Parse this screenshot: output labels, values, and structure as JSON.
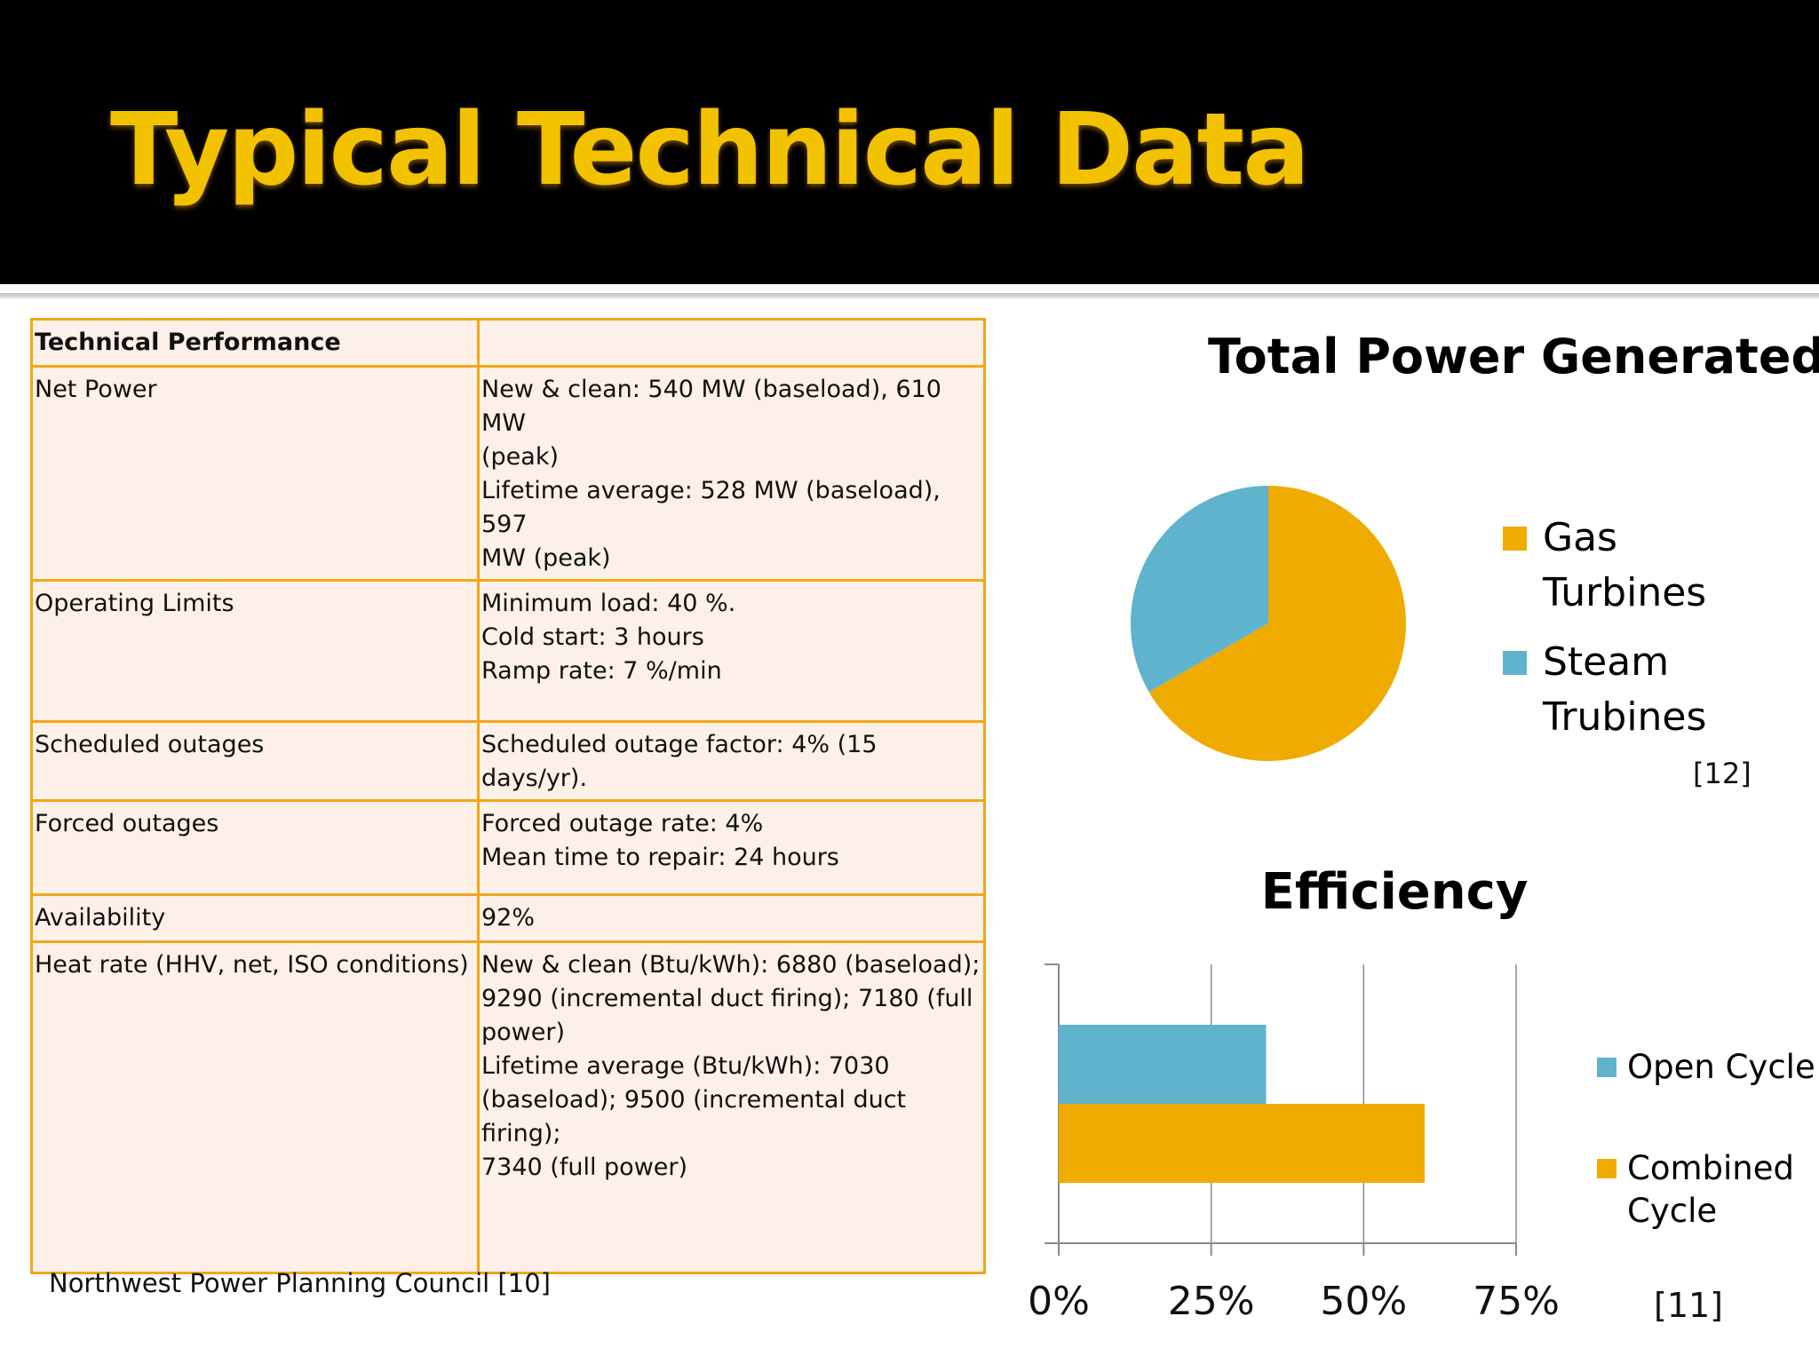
{
  "slide": {
    "title": "Typical Technical Data",
    "source_note": "Northwest Power Planning Council [10]"
  },
  "table": {
    "header": [
      "Technical Performance",
      ""
    ],
    "rows": [
      {
        "label": "Net Power",
        "lines": [
          "New & clean: 540 MW (baseload), 610 MW",
          "(peak)",
          "Lifetime average: 528 MW (baseload), 597",
          "MW (peak)"
        ]
      },
      {
        "label": "Operating Limits",
        "lines": [
          "Minimum load: 40 %.",
          "Cold start: 3 hours",
          "Ramp rate: 7 %/min"
        ]
      },
      {
        "label": "Scheduled outages",
        "lines": [
          "Scheduled outage factor: 4% (15 days/yr)."
        ]
      },
      {
        "label": "Forced outages",
        "lines": [
          "Forced outage rate: 4%",
          "Mean time to repair: 24 hours"
        ]
      },
      {
        "label": "Availability",
        "lines": [
          "92%"
        ]
      },
      {
        "label": "Heat rate (HHV, net, ISO conditions)",
        "lines": [
          "New & clean (Btu/kWh): 6880 (baseload);",
          "9290 (incremental duct firing); 7180 (full",
          "power)",
          "Lifetime average (Btu/kWh): 7030",
          "(baseload); 9500 (incremental duct firing);",
          "7340 (full power)"
        ]
      }
    ]
  },
  "chart_data": [
    {
      "type": "pie",
      "title": "Total Power Generated",
      "categories": [
        "Gas Turbines",
        "Steam Trubines"
      ],
      "values": [
        66.7,
        33.3
      ],
      "colors": [
        "#f0ab00",
        "#5fb3cd"
      ],
      "legend": [
        "Gas\nTurbines",
        "Steam\nTrubines"
      ],
      "legend_position": "right",
      "citation": "[12]"
    },
    {
      "type": "bar",
      "orientation": "horizontal",
      "title": "Efficiency",
      "series": [
        {
          "name": "Open Cycle",
          "values": [
            34
          ],
          "color": "#5fb3cd"
        },
        {
          "name": "Combined Cycle",
          "values": [
            60
          ],
          "color": "#f0ab00"
        }
      ],
      "legend": [
        "Open Cycle",
        "Combined\nCycle"
      ],
      "legend_position": "right",
      "xlim": [
        0,
        75
      ],
      "xticks": [
        "0%",
        "25%",
        "50%",
        "75%"
      ],
      "grid": true,
      "citation": "[11]"
    }
  ]
}
